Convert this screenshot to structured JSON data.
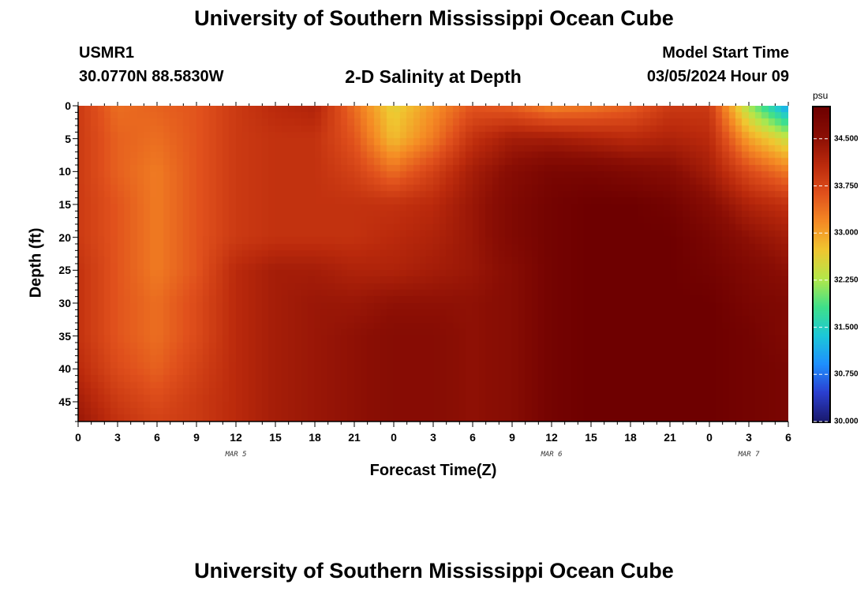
{
  "page": {
    "title_top": "University of Southern Mississippi Ocean Cube",
    "title_bottom": "University of Southern Mississippi Ocean Cube"
  },
  "header": {
    "station_id": "USMR1",
    "coords": "30.0770N  88.5830W",
    "plot_title": "2-D Salinity at Depth",
    "model_label": "Model Start Time",
    "model_time": "03/05/2024 Hour 09"
  },
  "chart_data": {
    "type": "heatmap",
    "title": "2-D Salinity at Depth",
    "xlabel": "Forecast Time(Z)",
    "ylabel": "Depth (ft)",
    "x_tick_labels": [
      "0",
      "3",
      "6",
      "9",
      "12",
      "15",
      "18",
      "21",
      "0",
      "3",
      "6",
      "9",
      "12",
      "15",
      "18",
      "21",
      "0",
      "3",
      "6"
    ],
    "x_range_hours": [
      0,
      54
    ],
    "date_labels": [
      {
        "label": "MAR 5",
        "hour": 12
      },
      {
        "label": "MAR 6",
        "hour": 36
      },
      {
        "label": "MAR 7",
        "hour": 51
      }
    ],
    "y_ticks": [
      0,
      5,
      10,
      15,
      20,
      25,
      30,
      35,
      40,
      45
    ],
    "y_range": [
      0,
      48
    ],
    "colorbar": {
      "unit": "psu",
      "range": [
        30.0,
        35.0
      ],
      "tick_values": [
        30.0,
        30.75,
        31.5,
        32.25,
        33.0,
        33.75,
        34.5
      ],
      "tick_labels": [
        "30.000",
        "30.750",
        "31.500",
        "32.250",
        "33.000",
        "33.750",
        "34.500"
      ],
      "colors": [
        "#1a1a6e",
        "#2b3fd0",
        "#1e90ff",
        "#1cc8d8",
        "#3fe08a",
        "#b4e84a",
        "#f0c630",
        "#f58a24",
        "#e0501c",
        "#bb2a0c",
        "#8a0e04",
        "#6e0000"
      ]
    },
    "depth_profile_ft": [
      0,
      5,
      10,
      15,
      20,
      25,
      30,
      35,
      40,
      45,
      48
    ],
    "time_hours": [
      0,
      3,
      6,
      9,
      12,
      15,
      18,
      21,
      24,
      27,
      30,
      33,
      36,
      39,
      42,
      45,
      48,
      51,
      54
    ],
    "salinity_grid_psu": [
      [
        33.9,
        33.4,
        33.5,
        33.6,
        33.9,
        34.1,
        34.2,
        33.4,
        32.6,
        33.1,
        33.6,
        33.5,
        33.2,
        33.3,
        33.5,
        33.9,
        33.9,
        32.2,
        31.0
      ],
      [
        33.9,
        33.5,
        33.4,
        33.6,
        33.9,
        34.0,
        34.0,
        33.6,
        32.8,
        33.3,
        34.0,
        34.3,
        34.3,
        34.2,
        34.1,
        34.2,
        34.1,
        33.0,
        32.4
      ],
      [
        33.9,
        33.5,
        33.3,
        33.6,
        33.9,
        34.0,
        34.0,
        33.8,
        33.4,
        33.8,
        34.3,
        34.6,
        34.8,
        34.8,
        34.7,
        34.6,
        34.3,
        33.7,
        33.3
      ],
      [
        33.9,
        33.6,
        33.3,
        33.6,
        33.9,
        34.0,
        34.0,
        34.0,
        34.0,
        34.1,
        34.4,
        34.7,
        34.9,
        35.0,
        35.0,
        34.9,
        34.6,
        34.2,
        34.0
      ],
      [
        33.9,
        33.6,
        33.3,
        33.6,
        33.9,
        34.0,
        34.0,
        34.0,
        34.1,
        34.2,
        34.4,
        34.7,
        34.9,
        35.0,
        35.0,
        35.0,
        34.8,
        34.5,
        34.3
      ],
      [
        34.0,
        33.6,
        33.3,
        33.6,
        34.1,
        34.3,
        34.3,
        34.2,
        34.2,
        34.3,
        34.4,
        34.6,
        34.9,
        35.0,
        35.0,
        35.0,
        34.9,
        34.7,
        34.5
      ],
      [
        34.0,
        33.6,
        33.4,
        33.7,
        34.1,
        34.3,
        34.4,
        34.4,
        34.5,
        34.5,
        34.5,
        34.6,
        34.9,
        35.0,
        35.0,
        35.0,
        35.0,
        34.8,
        34.7
      ],
      [
        34.0,
        33.6,
        33.4,
        33.7,
        34.1,
        34.3,
        34.4,
        34.5,
        34.6,
        34.6,
        34.5,
        34.6,
        34.9,
        35.0,
        35.0,
        35.0,
        35.0,
        34.9,
        34.7
      ],
      [
        34.1,
        33.7,
        33.5,
        33.8,
        34.1,
        34.3,
        34.4,
        34.5,
        34.6,
        34.6,
        34.5,
        34.6,
        34.9,
        35.0,
        35.0,
        35.0,
        35.0,
        34.9,
        34.8
      ],
      [
        34.3,
        33.9,
        33.7,
        33.9,
        34.1,
        34.3,
        34.4,
        34.5,
        34.6,
        34.6,
        34.5,
        34.6,
        34.9,
        35.0,
        35.0,
        35.0,
        35.0,
        34.9,
        34.8
      ],
      [
        34.4,
        34.0,
        33.8,
        33.9,
        34.1,
        34.3,
        34.4,
        34.5,
        34.6,
        34.6,
        34.5,
        34.6,
        34.9,
        35.0,
        35.0,
        35.0,
        35.0,
        34.9,
        34.8
      ]
    ]
  }
}
